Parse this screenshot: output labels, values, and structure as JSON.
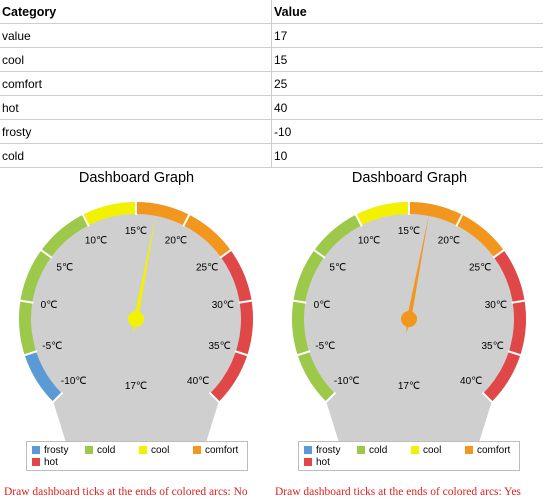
{
  "table": {
    "headers": [
      "Category",
      "Value"
    ],
    "rows": [
      [
        "value",
        "17"
      ],
      [
        "cool",
        "15"
      ],
      [
        "comfort",
        "25"
      ],
      [
        "hot",
        "40"
      ],
      [
        "frosty",
        "-10"
      ],
      [
        "cold",
        "10"
      ]
    ]
  },
  "chart_data": [
    {
      "type": "gauge",
      "title": "Dashboard Graph",
      "min": -10,
      "max": 40,
      "value": 17,
      "value_label": "17℃",
      "tick_labels": [
        "-10℃",
        "-5℃",
        "0℃",
        "5℃",
        "10℃",
        "15℃",
        "20℃",
        "25℃",
        "30℃",
        "35℃",
        "40℃"
      ],
      "ranges": [
        {
          "name": "frosty",
          "from": -10,
          "to": -5,
          "color": "#5b9bd5"
        },
        {
          "name": "cold",
          "from": -5,
          "to": 10,
          "color": "#9cc94a"
        },
        {
          "name": "cool",
          "from": 10,
          "to": 15,
          "color": "#f2f200"
        },
        {
          "name": "comfort",
          "from": 15,
          "to": 25,
          "color": "#f2961e"
        },
        {
          "name": "hot",
          "from": 25,
          "to": 40,
          "color": "#e04848"
        }
      ],
      "needle_color": "#f2f200",
      "ticks_at_range_ends": false,
      "footer": "Draw dashboard ticks at the ends of colored arcs: No"
    },
    {
      "type": "gauge",
      "title": "Dashboard Graph",
      "min": -10,
      "max": 40,
      "value": 17,
      "value_label": "17℃",
      "tick_labels": [
        "-10℃",
        "-5℃",
        "0℃",
        "5℃",
        "10℃",
        "15℃",
        "20℃",
        "25℃",
        "30℃",
        "35℃",
        "40℃"
      ],
      "ranges": [
        {
          "name": "cold",
          "from": -10,
          "to": 10,
          "color": "#9cc94a"
        },
        {
          "name": "cool",
          "from": 10,
          "to": 15,
          "color": "#f2f200"
        },
        {
          "name": "comfort",
          "from": 15,
          "to": 25,
          "color": "#f2961e"
        },
        {
          "name": "hot",
          "from": 25,
          "to": 40,
          "color": "#e04848"
        }
      ],
      "needle_color": "#f2961e",
      "ticks_at_range_ends": true,
      "footer": "Draw dashboard ticks at the ends of colored arcs: Yes"
    }
  ],
  "legend": [
    {
      "name": "frosty",
      "color": "#5b9bd5"
    },
    {
      "name": "cold",
      "color": "#9cc94a"
    },
    {
      "name": "cool",
      "color": "#f2f200"
    },
    {
      "name": "comfort",
      "color": "#f2961e"
    },
    {
      "name": "hot",
      "color": "#e04848"
    }
  ],
  "colors": {
    "face": "#cfcfcf",
    "divider": "#ffffff",
    "footer_text": "#e02020"
  }
}
